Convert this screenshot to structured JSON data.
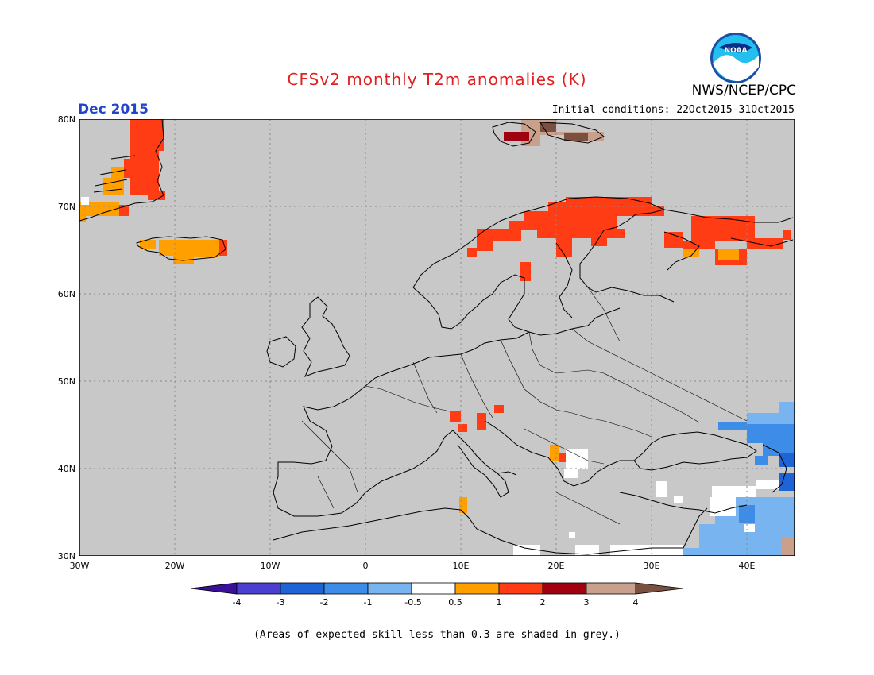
{
  "header": {
    "title": "CFSv2 monthly T2m anomalies (K)",
    "month": "Dec 2015",
    "agency": "NWS/NCEP/CPC",
    "initial_conditions": "Initial conditions: 22Oct2015-31Oct2015",
    "logo_text": "NOAA"
  },
  "map": {
    "lat_labels": [
      "80N",
      "70N",
      "60N",
      "50N",
      "40N",
      "30N"
    ],
    "lon_labels": [
      "30W",
      "20W",
      "10W",
      "0",
      "10E",
      "20E",
      "30E",
      "40E"
    ],
    "background_color": "#c8c8c8"
  },
  "colorbar": {
    "labels": [
      "-4",
      "-3",
      "-2",
      "-1",
      "-0.5",
      "0.5",
      "1",
      "2",
      "3",
      "4"
    ],
    "colors": [
      "#3a0f9a",
      "#4a3fd0",
      "#1f64d6",
      "#3c8ce8",
      "#78b4f0",
      "#ffffff",
      "#ffa000",
      "#ff3c14",
      "#a00010",
      "#c8a08c",
      "#7a5040"
    ]
  },
  "footnote": "(Areas of expected skill less than 0.3 are shaded in grey.)"
}
